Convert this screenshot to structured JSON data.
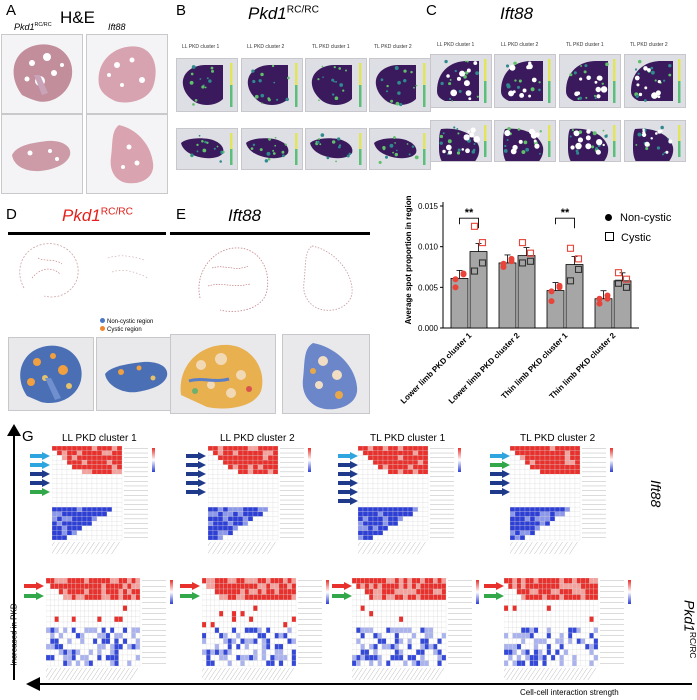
{
  "panels": {
    "A": "A",
    "B": "B",
    "C": "C",
    "D": "D",
    "E": "E",
    "G": "G"
  },
  "panelA": {
    "title": "H&E",
    "col1_gene": "Pkd1",
    "col1_sup": "RC/RC",
    "col2_gene": "Ift88"
  },
  "panelB": {
    "gene": "Pkd1",
    "sup": "RC/RC",
    "clusters": [
      "LL PKD cluster 1",
      "LL PKD cluster 2",
      "TL PKD cluster 1",
      "TL PKD cluster 2"
    ]
  },
  "panelC": {
    "gene": "Ift88",
    "clusters": [
      "LL PKD cluster 1",
      "LL PKD cluster 2",
      "TL PKD cluster 1",
      "TL PKD cluster 2"
    ]
  },
  "panelD": {
    "gene": "Pkd1",
    "sup": "RC/RC",
    "legend": [
      "Non-cystic region",
      "Cystic region"
    ],
    "colors": {
      "noncystic": "#4a78c4",
      "cystic": "#f0852d"
    }
  },
  "panelE": {
    "gene": "Ift88"
  },
  "chart_data": {
    "type": "bar",
    "ylabel": "Average spot proportion in region",
    "ylim": [
      0,
      0.015
    ],
    "yticks": [
      "0.000",
      "0.005",
      "0.010",
      "0.015"
    ],
    "categories": [
      "Lower limb PKD cluster 1",
      "Lower limb PKD cluster 2",
      "Thin limb PKD cluster 1",
      "Thin limb PKD cluster 2"
    ],
    "series": [
      {
        "name": "Non-cystic",
        "values": [
          0.0061,
          0.008,
          0.0046,
          0.0036
        ]
      },
      {
        "name": "Cystic",
        "values": [
          0.0094,
          0.0089,
          0.0078,
          0.0058
        ]
      }
    ],
    "points": {
      "noncystic": [
        [
          0.006,
          0.0067,
          0.005,
          0.0066
        ],
        [
          0.0079,
          0.0085,
          0.0075,
          0.0082
        ],
        [
          0.0045,
          0.005,
          0.0033,
          0.0052
        ],
        [
          0.0036,
          0.004,
          0.003,
          0.0036
        ]
      ],
      "cystic": [
        [
          0.0125,
          0.0105,
          0.007,
          0.008
        ],
        [
          0.0105,
          0.0092,
          0.008,
          0.0082
        ],
        [
          0.0098,
          0.0085,
          0.0058,
          0.0072
        ],
        [
          0.0068,
          0.006,
          0.0055,
          0.005
        ]
      ]
    },
    "significance": [
      {
        "category": 0,
        "label": "**"
      },
      {
        "category": 2,
        "label": "**"
      }
    ],
    "colors": {
      "bar": "#a6a6a6",
      "noncystic_point": "#e8443a",
      "cystic_point": "#e8443a"
    }
  },
  "panelG": {
    "clusters": [
      "LL PKD cluster 1",
      "LL PKD cluster 2",
      "TL PKD cluster 1",
      "TL PKD cluster 2"
    ],
    "row1_gene": "Ift88",
    "row2_gene": "Pkd1",
    "row2_sup": "RC/RC",
    "y_axis": "Increased in PKD",
    "x_axis": "Cell-cell interaction strength"
  }
}
